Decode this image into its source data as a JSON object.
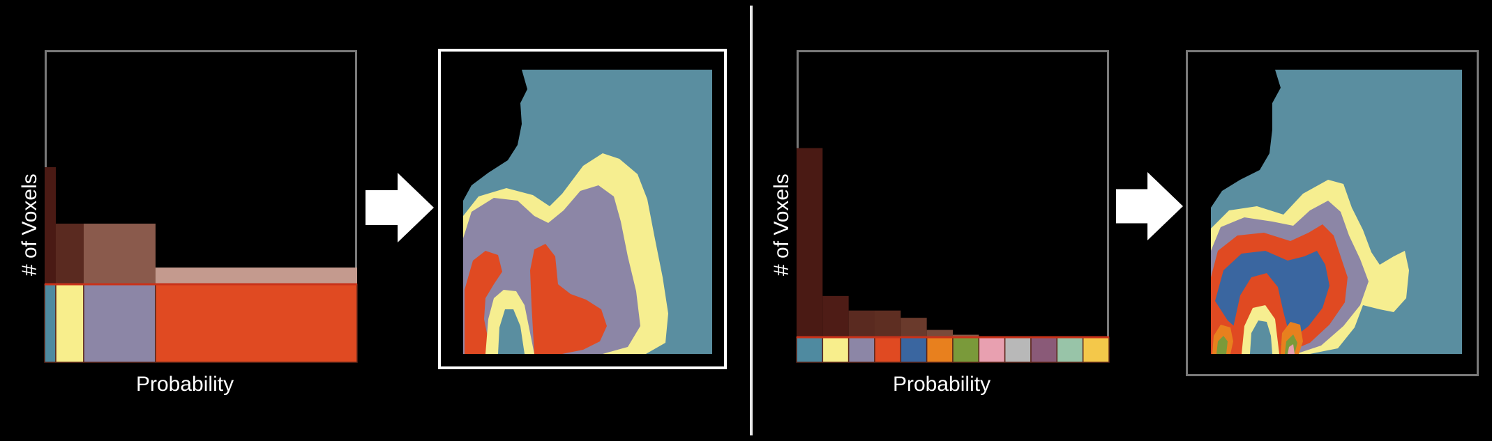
{
  "left_panel": {
    "histogram": {
      "y_axis_label": "# of Voxels",
      "x_axis_label": "Probability",
      "bins": [
        {
          "class_color": "#4f8aa0",
          "bar_color": "#4a1a14",
          "level": 0.56
        },
        {
          "class_color": "#f8ee8c",
          "bar_color": "#5a2a20",
          "level": 0.29
        },
        {
          "class_color": "#8c86a6",
          "bar_color": "#8a5a4c",
          "level": 0.29
        },
        {
          "class_color": "#e04a22",
          "bar_color": "#c49a8e",
          "level": 0.08
        }
      ]
    },
    "output_map": {
      "segments": 4,
      "colors": [
        "#5a8ea0",
        "#f6ee90",
        "#8c86a6",
        "#e04a22"
      ]
    }
  },
  "right_panel": {
    "histogram": {
      "y_axis_label": "# of Voxels",
      "x_axis_label": "Probability",
      "bins": [
        {
          "class_color": "#4f8aa0",
          "bar_color": "#4a1a14",
          "level": 0.78
        },
        {
          "class_color": "#f8ee8c",
          "bar_color": "#4e1c16",
          "level": 0.17
        },
        {
          "class_color": "#8c86a6",
          "bar_color": "#5a2a20",
          "level": 0.11
        },
        {
          "class_color": "#e04a22",
          "bar_color": "#5e2e22",
          "level": 0.11
        },
        {
          "class_color": "#3a66a0",
          "bar_color": "#6a3a2c",
          "level": 0.08
        },
        {
          "class_color": "#e8801e",
          "bar_color": "#7a4a3a",
          "level": 0.03
        },
        {
          "class_color": "#7a9a3a",
          "bar_color": "#8a5a48",
          "level": 0.01
        },
        {
          "class_color": "#e8a0b0",
          "bar_color": "#a06a58",
          "level": 0.0
        },
        {
          "class_color": "#b8b8b8",
          "bar_color": "#a06a58",
          "level": 0.0
        },
        {
          "class_color": "#8a5a78",
          "bar_color": "#a06a58",
          "level": 0.0
        },
        {
          "class_color": "#98c4a8",
          "bar_color": "#a06a58",
          "level": 0.0
        },
        {
          "class_color": "#f4c84a",
          "bar_color": "#a06a58",
          "level": 0.0
        }
      ]
    },
    "output_map": {
      "segments": 12
    }
  },
  "colors": {
    "background": "#000000",
    "arrow": "#ffffff",
    "frame": "#7a7a7a",
    "divider": "#e8e8e8"
  },
  "icons": {
    "arrow": "right-arrow-icon"
  }
}
